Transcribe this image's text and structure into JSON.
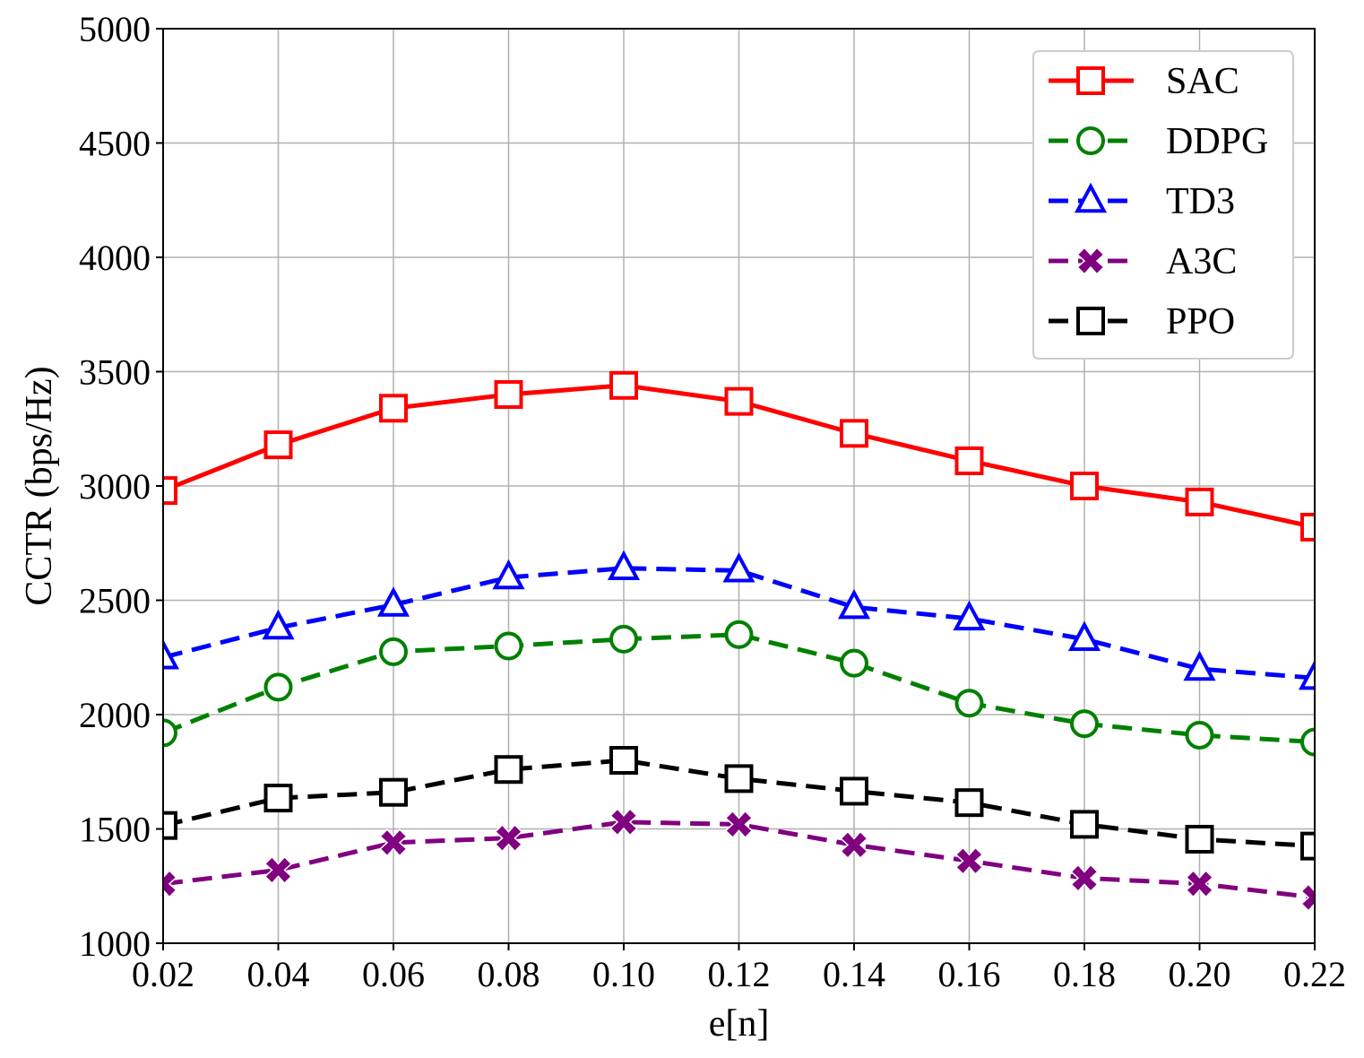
{
  "chart_data": {
    "type": "line",
    "title": "",
    "xlabel": "e[n]",
    "ylabel": "CCTR (bps/Hz)",
    "xlim": [
      0.02,
      0.22
    ],
    "ylim": [
      1000,
      5000
    ],
    "x": [
      0.02,
      0.04,
      0.06,
      0.08,
      0.1,
      0.12,
      0.14,
      0.16,
      0.18,
      0.2,
      0.22
    ],
    "x_tick_labels": [
      "0.02",
      "0.04",
      "0.06",
      "0.08",
      "0.10",
      "0.12",
      "0.14",
      "0.16",
      "0.18",
      "0.20",
      "0.22"
    ],
    "y_ticks": [
      1000,
      1500,
      2000,
      2500,
      3000,
      3500,
      4000,
      4500,
      5000
    ],
    "y_tick_labels": [
      "1000",
      "1500",
      "2000",
      "2500",
      "3000",
      "3500",
      "4000",
      "4500",
      "5000"
    ],
    "grid": true,
    "legend_position": "top-right",
    "series": [
      {
        "name": "SAC",
        "color": "#ff0000",
        "dash": "solid",
        "marker": "square",
        "values": [
          2980,
          3180,
          3340,
          3400,
          3440,
          3370,
          3230,
          3110,
          3000,
          2930,
          2820
        ]
      },
      {
        "name": "DDPG",
        "color": "#008000",
        "dash": "dashed",
        "marker": "circle",
        "values": [
          1920,
          2120,
          2275,
          2300,
          2330,
          2350,
          2225,
          2050,
          1960,
          1910,
          1880
        ]
      },
      {
        "name": "TD3",
        "color": "#0000ff",
        "dash": "dashed",
        "marker": "triangle",
        "values": [
          2250,
          2380,
          2480,
          2600,
          2640,
          2630,
          2470,
          2420,
          2330,
          2200,
          2160
        ]
      },
      {
        "name": "A3C",
        "color": "#800080",
        "dash": "dashed",
        "marker": "x-filled",
        "values": [
          1260,
          1320,
          1440,
          1460,
          1530,
          1520,
          1430,
          1360,
          1285,
          1260,
          1200
        ]
      },
      {
        "name": "PPO",
        "color": "#000000",
        "dash": "dashed",
        "marker": "square",
        "values": [
          1515,
          1635,
          1660,
          1760,
          1800,
          1720,
          1665,
          1615,
          1520,
          1455,
          1425
        ]
      }
    ]
  }
}
